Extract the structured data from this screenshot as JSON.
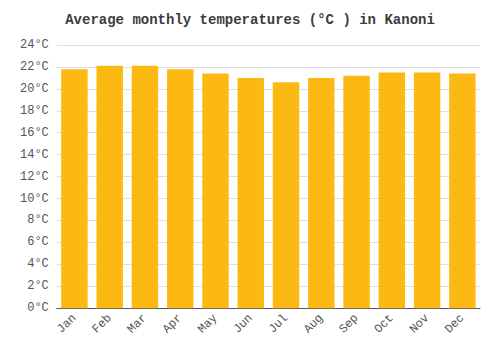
{
  "chart_data": {
    "type": "bar",
    "title": "Average monthly temperatures (°C ) in Kanoni",
    "categories": [
      "Jan",
      "Feb",
      "Mar",
      "Apr",
      "May",
      "Jun",
      "Jul",
      "Aug",
      "Sep",
      "Oct",
      "Nov",
      "Dec"
    ],
    "values": [
      21.8,
      22.1,
      22.1,
      21.8,
      21.4,
      21.0,
      20.6,
      21.0,
      21.2,
      21.5,
      21.5,
      21.4
    ],
    "color": "#FDB913",
    "ylim": [
      0,
      24
    ],
    "yticks": [
      {
        "value": 0,
        "label": "0°C"
      },
      {
        "value": 2,
        "label": "2°C"
      },
      {
        "value": 4,
        "label": "4°C"
      },
      {
        "value": 6,
        "label": "6°C"
      },
      {
        "value": 8,
        "label": "8°C"
      },
      {
        "value": 10,
        "label": "10°C"
      },
      {
        "value": 12,
        "label": "12°C"
      },
      {
        "value": 14,
        "label": "14°C"
      },
      {
        "value": 16,
        "label": "16°C"
      },
      {
        "value": 18,
        "label": "18°C"
      },
      {
        "value": 20,
        "label": "20°C"
      },
      {
        "value": 22,
        "label": "22°C"
      },
      {
        "value": 24,
        "label": "24°C"
      }
    ],
    "grid": true
  }
}
